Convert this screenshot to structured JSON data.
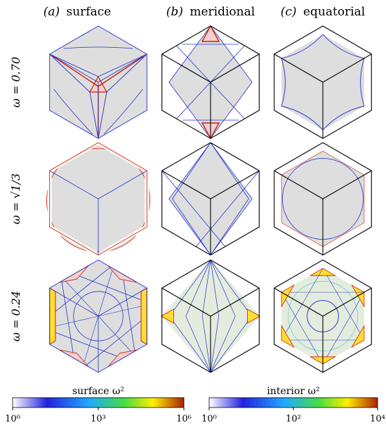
{
  "columns": [
    {
      "tag": "(a)",
      "label": "surface"
    },
    {
      "tag": "(b)",
      "label": "meridional"
    },
    {
      "tag": "(c)",
      "label": "equatorial"
    }
  ],
  "rows": [
    {
      "label": "ω = 0.70"
    },
    {
      "label": "ω = √1/3"
    },
    {
      "label": "ω = 0.24"
    }
  ],
  "colorbars": [
    {
      "label": "surface ω²",
      "ticks": [
        "10⁰",
        "10³",
        "10⁶"
      ],
      "scale": "log",
      "stops": [
        "#ffffff",
        "#2222dd",
        "#22aaff",
        "#44dd44",
        "#ffee00",
        "#aa2200"
      ]
    },
    {
      "label": "interior ω²",
      "ticks": [
        "10⁰",
        "10²",
        "10⁴"
      ],
      "scale": "log",
      "stops": [
        "#ffffff",
        "#2222dd",
        "#22aaff",
        "#44dd44",
        "#ffee00",
        "#aa2200"
      ]
    }
  ],
  "colors": {
    "outline": "#000000",
    "fill": "#dedede",
    "ray": "#2233cc",
    "hot": "#cc2200",
    "pink": "#f3cfcf",
    "yellow": "#ffdd33",
    "cyan": "#66cccc"
  }
}
